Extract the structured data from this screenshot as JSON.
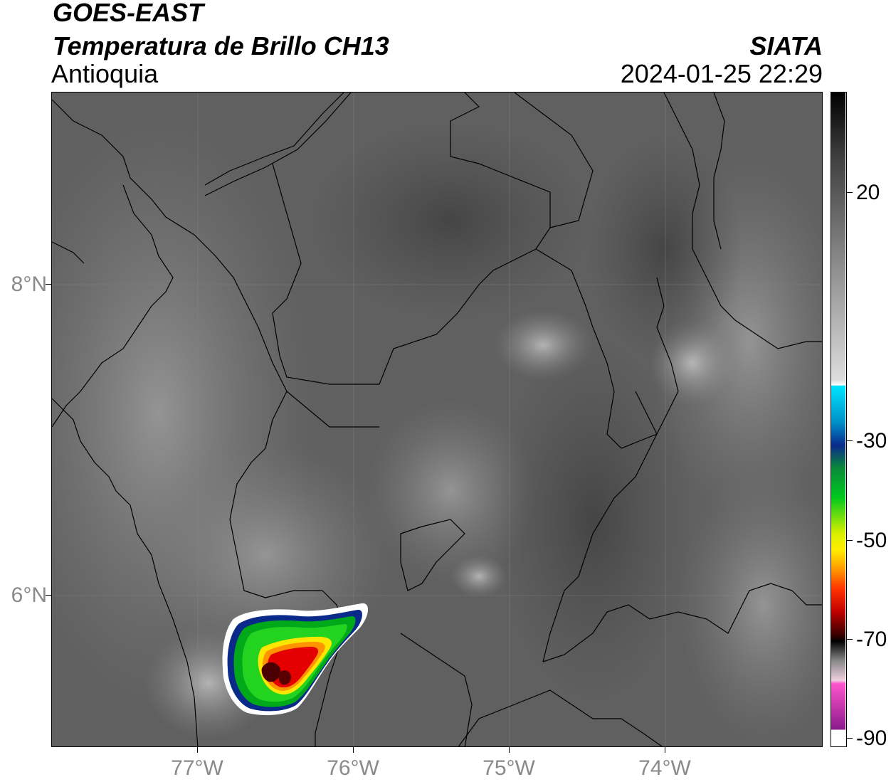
{
  "header": {
    "title": "GOES-EAST",
    "subtitle": "Temperatura de Brillo CH13",
    "region": "Antioquia",
    "organization": "SIATA",
    "datetime": "2024-01-25 22:29"
  },
  "map": {
    "lat_ticks": [
      "8°N",
      "6°N"
    ],
    "lon_ticks": [
      "77°W",
      "76°W",
      "75°W",
      "74°W"
    ]
  },
  "colorbar": {
    "labels": [
      "20",
      "-30",
      "-50",
      "-70",
      "-90"
    ],
    "colors": {
      "black_top": "#000000",
      "gray_high": "#666666",
      "white": "#ffffff",
      "cyan": "#00e5ff",
      "blue": "#0a2a8a",
      "green": "#00c81e",
      "yellow": "#ffee00",
      "orange": "#ff9900",
      "red": "#e00000",
      "dark_red": "#6b0000",
      "black": "#000000",
      "pink": "#ff55cc",
      "purple": "#8a1a8a"
    }
  }
}
